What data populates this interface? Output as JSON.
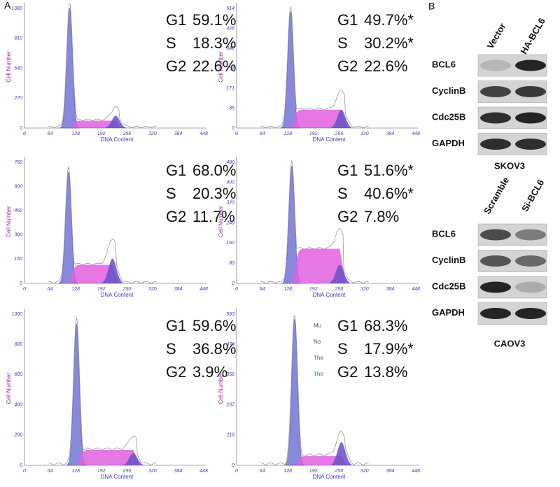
{
  "panel_a": {
    "label": "A",
    "plots": [
      {
        "x_label": "DNA Content",
        "y_label": "Cell Number",
        "xticks": [
          "0",
          "64",
          "128",
          "192",
          "256",
          "320",
          "384",
          "448"
        ],
        "yticks": [
          "0",
          "270",
          "540",
          "810",
          "1080"
        ],
        "stats": [
          {
            "phase": "G1",
            "value": "59.1%"
          },
          {
            "phase": "S",
            "value": "18.3%"
          },
          {
            "phase": "G2",
            "value": "22.6%"
          }
        ]
      },
      {
        "x_label": "DNA Content",
        "y_label": "Cell Number",
        "xticks": [
          "0",
          "64",
          "128",
          "192",
          "256",
          "320",
          "384",
          "448"
        ],
        "yticks": [
          "0",
          "85",
          "171",
          "257",
          "342",
          "428",
          "514"
        ],
        "stats": [
          {
            "phase": "G1",
            "value": "49.7%*"
          },
          {
            "phase": "S",
            "value": "30.2%*"
          },
          {
            "phase": "G2",
            "value": "22.6%"
          }
        ]
      },
      {
        "x_label": "DNA Content",
        "y_label": "Cell Number",
        "xticks": [
          "0",
          "64",
          "128",
          "192",
          "256",
          "320",
          "384",
          "448"
        ],
        "yticks": [
          "0",
          "150",
          "300",
          "450",
          "600",
          "750"
        ],
        "stats": [
          {
            "phase": "G1",
            "value": "68.0%"
          },
          {
            "phase": "S",
            "value": "20.3%"
          },
          {
            "phase": "G2",
            "value": "11.7%"
          }
        ]
      },
      {
        "x_label": "DNA Content",
        "y_label": "Cell Number",
        "xticks": [
          "0",
          "64",
          "128",
          "192",
          "256",
          "320",
          "384",
          "448"
        ],
        "yticks": [
          "0",
          "80",
          "160",
          "240",
          "320",
          "400",
          "480"
        ],
        "stats": [
          {
            "phase": "G1",
            "value": "51.6%*"
          },
          {
            "phase": "S",
            "value": "40.6%*"
          },
          {
            "phase": "G2",
            "value": "7.8%"
          }
        ]
      },
      {
        "x_label": "DNA Content",
        "y_label": "Cell Number",
        "xticks": [
          "0",
          "64",
          "128",
          "192",
          "256",
          "320",
          "384",
          "448"
        ],
        "yticks": [
          "0",
          "200",
          "400",
          "600",
          "800",
          "1000"
        ],
        "stats": [
          {
            "phase": "G1",
            "value": "59.6%"
          },
          {
            "phase": "S",
            "value": "36.8%"
          },
          {
            "phase": "G2",
            "value": "3.9%"
          }
        ]
      },
      {
        "x_label": "DNA Content",
        "y_label": "Cell Number",
        "xticks": [
          "0",
          "64",
          "128",
          "192",
          "256",
          "320",
          "384",
          "448"
        ],
        "yticks": [
          "0",
          "118",
          "237",
          "356",
          "474",
          "593"
        ],
        "stats": [
          {
            "phase": "G1",
            "value": "68.3%"
          },
          {
            "phase": "S",
            "value": "17.9%*"
          },
          {
            "phase": "G2",
            "value": "13.8%"
          }
        ],
        "overlay_text": [
          "Mu",
          "No",
          "The",
          "The"
        ]
      }
    ]
  },
  "panel_b": {
    "label": "B",
    "blots": [
      {
        "columns": [
          "Vector",
          "HA-BCL6"
        ],
        "rows": [
          "BCL6",
          "CyclinB",
          "Cdc25B",
          "GAPDH"
        ],
        "cell_line": "SKOV3"
      },
      {
        "columns": [
          "Scramble",
          "Si-BCL6"
        ],
        "rows": [
          "BCL6",
          "CyclinB",
          "Cdc25B",
          "GAPDH"
        ],
        "cell_line": "CAOV3"
      }
    ]
  }
}
